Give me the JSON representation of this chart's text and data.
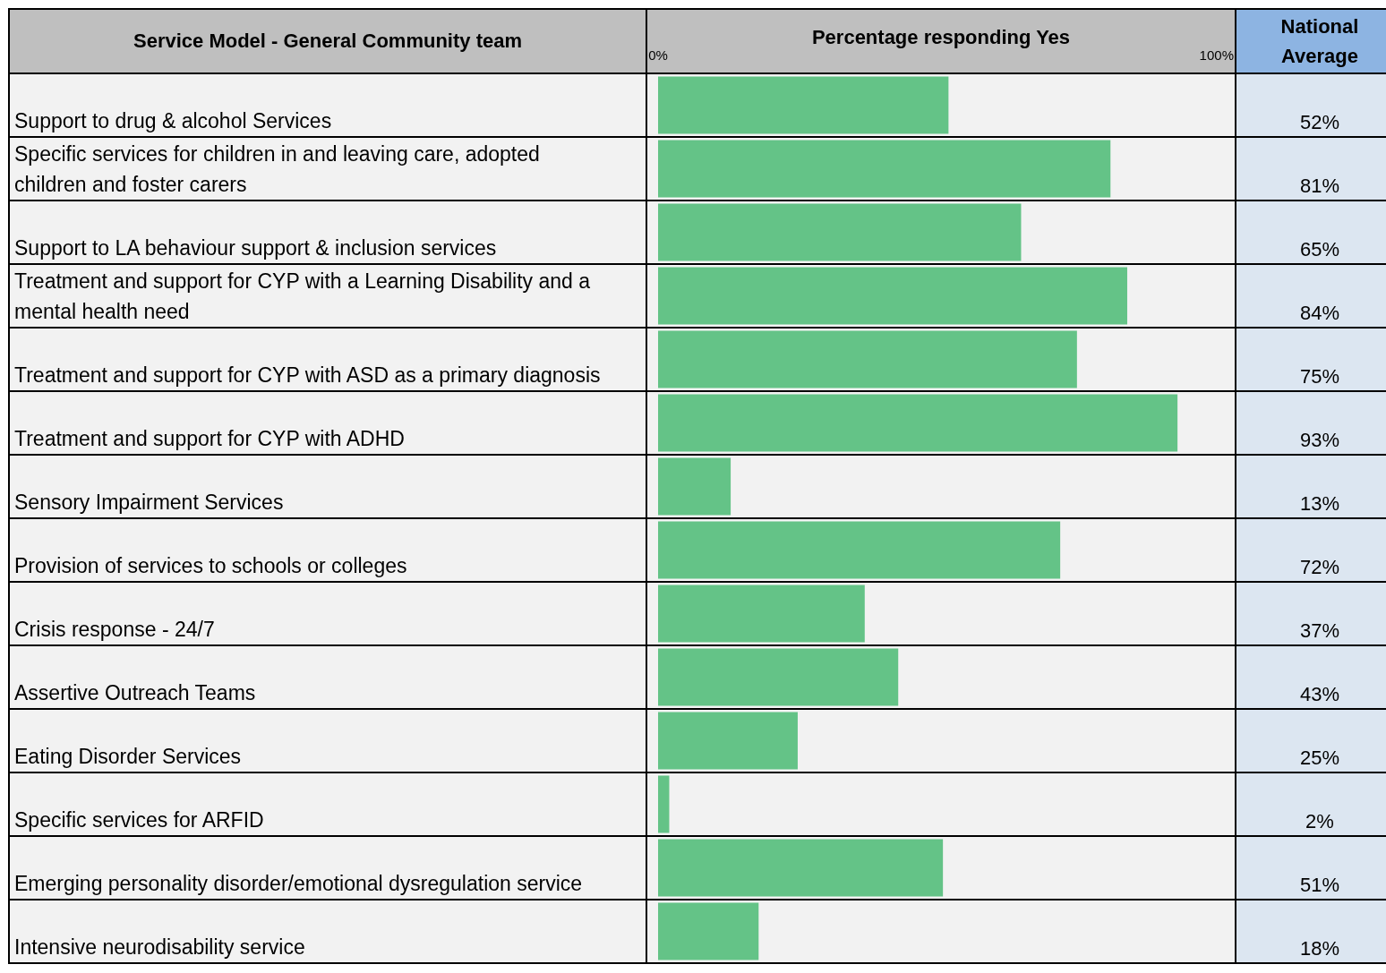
{
  "chart_data": {
    "type": "bar",
    "orientation": "horizontal",
    "ylabel": "Service Model - General Community team",
    "xlabel": "Percentage responding Yes",
    "annotations": [
      "National Average"
    ],
    "categories": [
      "Support to drug & alcohol Services",
      "Specific services for children in and leaving care, adopted children and foster carers",
      "Support to LA behaviour support & inclusion services",
      "Treatment and support for CYP with a Learning Disability and a mental health need",
      "Treatment and support for CYP with ASD as a primary diagnosis",
      "Treatment and support for CYP with ADHD",
      "Sensory Impairment Services",
      "Provision of services to schools or colleges",
      "Crisis response - 24/7",
      "Assertive Outreach Teams",
      "Eating Disorder Services",
      "Specific services for ARFID",
      "Emerging personality disorder/emotional dysregulation service",
      "Intensive neurodisability service"
    ],
    "values": [
      52,
      81,
      65,
      84,
      75,
      93,
      13,
      72,
      37,
      43,
      25,
      2,
      51,
      18
    ],
    "value_labels": [
      "52%",
      "81%",
      "65%",
      "84%",
      "75%",
      "93%",
      "13%",
      "72%",
      "37%",
      "43%",
      "25%",
      "2%",
      "51%",
      "18%"
    ],
    "color": "#64c387",
    "xlim": [
      0,
      103.4
    ],
    "xticks": [
      {
        "value": 0,
        "label": "0%"
      },
      {
        "value": 100,
        "label": "100%"
      }
    ]
  }
}
